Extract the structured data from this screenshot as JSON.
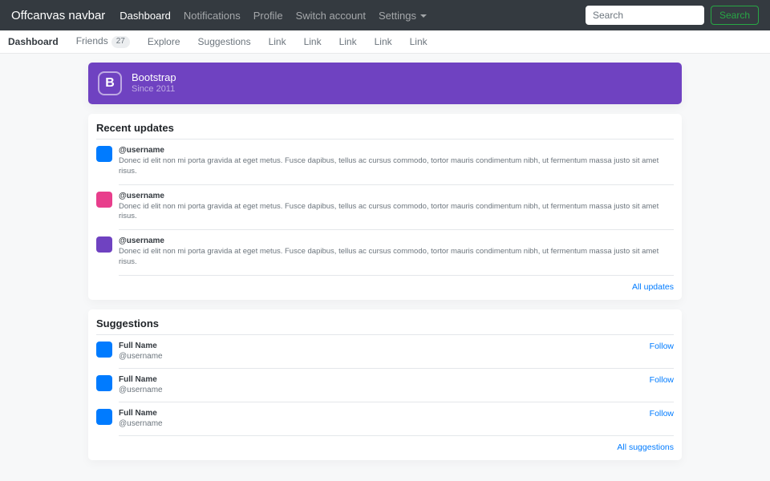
{
  "navbar": {
    "brand": "Offcanvas navbar",
    "items": [
      {
        "label": "Dashboard",
        "active": true
      },
      {
        "label": "Notifications",
        "active": false
      },
      {
        "label": "Profile",
        "active": false
      },
      {
        "label": "Switch account",
        "active": false
      },
      {
        "label": "Settings",
        "active": false,
        "dropdown": true
      }
    ],
    "search": {
      "placeholder": "Search",
      "button_label": "Search"
    }
  },
  "subnav": {
    "items": [
      {
        "label": "Dashboard",
        "active": true
      },
      {
        "label": "Friends",
        "badge": "27"
      },
      {
        "label": "Explore"
      },
      {
        "label": "Suggestions"
      },
      {
        "label": "Link"
      },
      {
        "label": "Link"
      },
      {
        "label": "Link"
      },
      {
        "label": "Link"
      },
      {
        "label": "Link"
      }
    ]
  },
  "banner": {
    "logo_letter": "B",
    "title": "Bootstrap",
    "subtitle": "Since 2011",
    "bg_color": "#6f42c1"
  },
  "recent_updates": {
    "title": "Recent updates",
    "items": [
      {
        "username": "@username",
        "text": "Donec id elit non mi porta gravida at eget metus. Fusce dapibus, tellus ac cursus commodo, tortor mauris condimentum nibh, ut fermentum massa justo sit amet risus.",
        "avatar_color": "#007bff"
      },
      {
        "username": "@username",
        "text": "Donec id elit non mi porta gravida at eget metus. Fusce dapibus, tellus ac cursus commodo, tortor mauris condimentum nibh, ut fermentum massa justo sit amet risus.",
        "avatar_color": "#e83e8c"
      },
      {
        "username": "@username",
        "text": "Donec id elit non mi porta gravida at eget metus. Fusce dapibus, tellus ac cursus commodo, tortor mauris condimentum nibh, ut fermentum massa justo sit amet risus.",
        "avatar_color": "#6f42c1"
      }
    ],
    "footer_link": "All updates"
  },
  "suggestions": {
    "title": "Suggestions",
    "items": [
      {
        "name": "Full Name",
        "username": "@username",
        "action": "Follow",
        "avatar_color": "#007bff"
      },
      {
        "name": "Full Name",
        "username": "@username",
        "action": "Follow",
        "avatar_color": "#007bff"
      },
      {
        "name": "Full Name",
        "username": "@username",
        "action": "Follow",
        "avatar_color": "#007bff"
      }
    ],
    "footer_link": "All suggestions"
  },
  "colors": {
    "navbar_bg": "#343a40",
    "page_bg": "#f7f8f9",
    "link": "#007bff",
    "success": "#28a745",
    "banner_purple": "#6f42c1"
  }
}
